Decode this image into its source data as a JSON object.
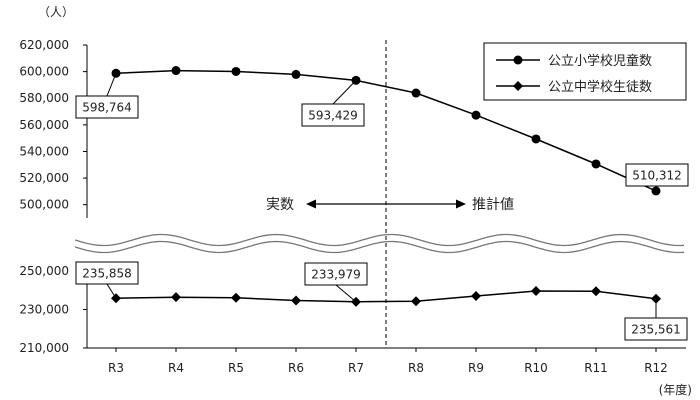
{
  "chart_data": {
    "type": "line",
    "categories": [
      "R3",
      "R4",
      "R5",
      "R6",
      "R7",
      "R8",
      "R9",
      "R10",
      "R11",
      "R12"
    ],
    "y_unit": "（人）",
    "x_unit": "(年度)",
    "series": [
      {
        "name": "公立小学校児童数",
        "marker": "circle",
        "values": [
          598764,
          600800,
          600100,
          597900,
          593429,
          583900,
          567300,
          549400,
          530600,
          510312
        ]
      },
      {
        "name": "公立中学校生徒数",
        "marker": "diamond",
        "values": [
          235858,
          236400,
          236100,
          234700,
          233979,
          234300,
          237000,
          239600,
          239500,
          235561
        ]
      }
    ],
    "upper_axis": {
      "range": [
        490000,
        620000
      ],
      "ticks": [
        "500,000",
        "520,000",
        "540,000",
        "560,000",
        "580,000",
        "600,000",
        "620,000"
      ]
    },
    "lower_axis": {
      "range": [
        210000,
        250000
      ],
      "ticks": [
        "210,000",
        "230,000",
        "250,000"
      ]
    },
    "data_labels": [
      {
        "series": 0,
        "index": 0,
        "text": "598,764"
      },
      {
        "series": 0,
        "index": 4,
        "text": "593,429"
      },
      {
        "series": 0,
        "index": 9,
        "text": "510,312"
      },
      {
        "series": 1,
        "index": 0,
        "text": "235,858"
      },
      {
        "series": 1,
        "index": 4,
        "text": "233,979"
      },
      {
        "series": 1,
        "index": 9,
        "text": "235,561"
      }
    ],
    "annotations": {
      "actual": "実数",
      "estimate": "推計値"
    },
    "divider_between": [
      "R7",
      "R8"
    ],
    "axis_break": true,
    "grid": false,
    "legend_position": "top-right",
    "line_color": "#000000"
  }
}
